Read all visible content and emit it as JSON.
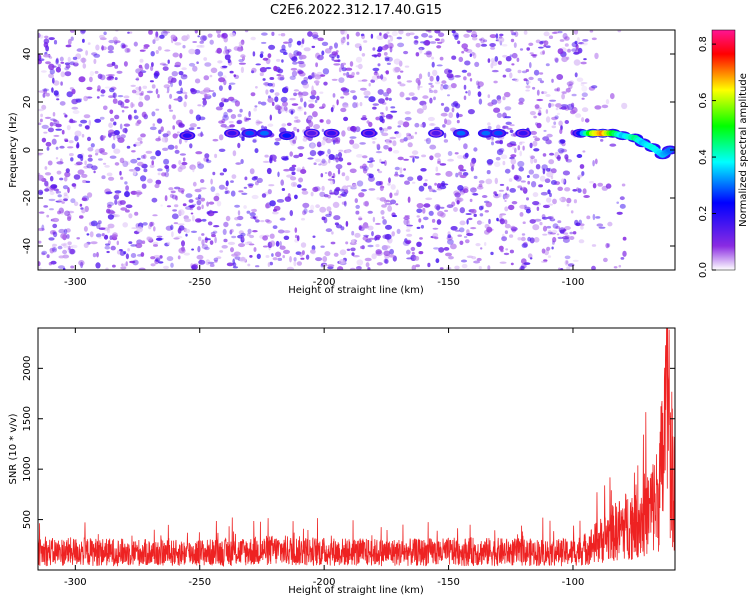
{
  "title": "C2E6.2022.312.17.40.G15",
  "chart_data": [
    {
      "type": "heatmap",
      "xlabel": "Height of straight line (km)",
      "ylabel": "Frequency (Hz)",
      "xlim": [
        -315,
        -59
      ],
      "ylim": [
        -50,
        50
      ],
      "xticks": [
        -300,
        -250,
        -200,
        -150,
        -100
      ],
      "yticks": [
        -40,
        -20,
        0,
        20,
        40
      ],
      "colorbar": {
        "label": "Normalized spectral amplitude",
        "range": [
          0,
          0.85
        ],
        "ticks": [
          0.0,
          0.2,
          0.4,
          0.6,
          0.8
        ],
        "colors": [
          "#ffffff",
          "#8a2be2",
          "#0000ff",
          "#00ffff",
          "#00ff00",
          "#ffff00",
          "#ff0000",
          "#ff1493"
        ]
      },
      "background_noise": {
        "x_start": -315,
        "x_end": -95,
        "level": 0.05
      },
      "signal_track": [
        {
          "x": -255,
          "f": 6,
          "amp": 0.2
        },
        {
          "x": -237,
          "f": 7,
          "amp": 0.18
        },
        {
          "x": -230,
          "f": 7,
          "amp": 0.28
        },
        {
          "x": -224,
          "f": 7,
          "amp": 0.3
        },
        {
          "x": -215,
          "f": 6,
          "amp": 0.25
        },
        {
          "x": -205,
          "f": 7,
          "amp": 0.15
        },
        {
          "x": -197,
          "f": 7,
          "amp": 0.18
        },
        {
          "x": -182,
          "f": 7,
          "amp": 0.18
        },
        {
          "x": -155,
          "f": 7,
          "amp": 0.15
        },
        {
          "x": -145,
          "f": 7,
          "amp": 0.3
        },
        {
          "x": -135,
          "f": 7,
          "amp": 0.3
        },
        {
          "x": -130,
          "f": 7,
          "amp": 0.28
        },
        {
          "x": -120,
          "f": 7,
          "amp": 0.18
        },
        {
          "x": -97,
          "f": 7,
          "amp": 0.25
        },
        {
          "x": -92,
          "f": 7,
          "amp": 0.6
        },
        {
          "x": -88,
          "f": 7,
          "amp": 0.7
        },
        {
          "x": -84,
          "f": 7,
          "amp": 0.5
        },
        {
          "x": -80,
          "f": 6,
          "amp": 0.35
        },
        {
          "x": -75,
          "f": 5,
          "amp": 0.45
        },
        {
          "x": -72,
          "f": 3,
          "amp": 0.35
        },
        {
          "x": -68,
          "f": 1,
          "amp": 0.4
        },
        {
          "x": -64,
          "f": -2,
          "amp": 0.35
        },
        {
          "x": -61,
          "f": 0,
          "amp": 0.3
        }
      ]
    },
    {
      "type": "line",
      "xlabel": "Height of straight line (km)",
      "ylabel": "SNR (10 * v/v)",
      "xlim": [
        -315,
        -59
      ],
      "ylim": [
        0,
        2400
      ],
      "xticks": [
        -300,
        -250,
        -200,
        -150,
        -100
      ],
      "yticks": [
        500,
        1000,
        1500,
        2000
      ],
      "series": [
        {
          "color": "#ee2222",
          "points": [
            {
              "x": -315,
              "y": 250
            },
            {
              "x": -300,
              "y": 260
            },
            {
              "x": -280,
              "y": 250
            },
            {
              "x": -260,
              "y": 240
            },
            {
              "x": -240,
              "y": 250
            },
            {
              "x": -220,
              "y": 280
            },
            {
              "x": -200,
              "y": 260
            },
            {
              "x": -180,
              "y": 250
            },
            {
              "x": -160,
              "y": 250
            },
            {
              "x": -140,
              "y": 260
            },
            {
              "x": -120,
              "y": 250
            },
            {
              "x": -100,
              "y": 250
            },
            {
              "x": -95,
              "y": 300
            },
            {
              "x": -90,
              "y": 400
            },
            {
              "x": -85,
              "y": 500
            },
            {
              "x": -80,
              "y": 600
            },
            {
              "x": -75,
              "y": 700
            },
            {
              "x": -70,
              "y": 800
            },
            {
              "x": -66,
              "y": 1000
            },
            {
              "x": -64,
              "y": 1500
            },
            {
              "x": -62,
              "y": 2400
            },
            {
              "x": -60,
              "y": 1400
            },
            {
              "x": -59,
              "y": 1200
            }
          ]
        }
      ]
    }
  ]
}
